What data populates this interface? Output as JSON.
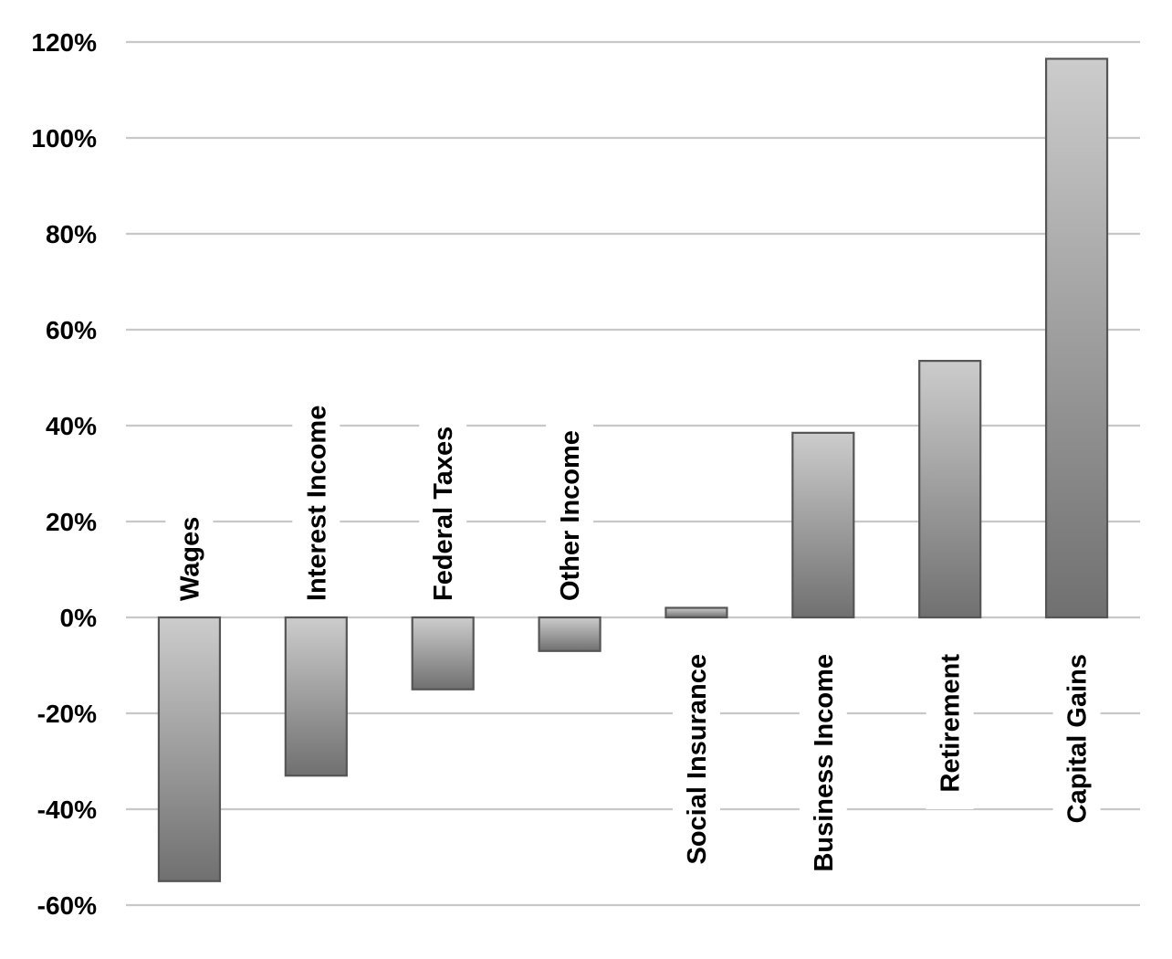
{
  "chart_data": {
    "type": "bar",
    "categories": [
      "Wages",
      "Interest Income",
      "Federal Taxes",
      "Other Income",
      "Social Insurance",
      "Business Income",
      "Retirement",
      "Capital Gains"
    ],
    "values": [
      -55,
      -33,
      -15,
      -7,
      2,
      38.5,
      53.5,
      116.5
    ],
    "y_ticks": [
      "120%",
      "100%",
      "80%",
      "60%",
      "40%",
      "20%",
      "0%",
      "-20%",
      "-40%",
      "-60%"
    ],
    "y_tick_values": [
      120,
      100,
      80,
      60,
      40,
      20,
      0,
      -20,
      -40,
      -60
    ],
    "ylim": [
      -60,
      120
    ],
    "title": "",
    "xlabel": "",
    "ylabel": "",
    "grid": true,
    "category_labels": "rotated vertical, placed on opposite side of zero from bar",
    "colors": {
      "bar_light": "#cccccc",
      "bar_dark": "#707070",
      "bar_border": "#555555",
      "grid": "#c8c8c8"
    }
  }
}
